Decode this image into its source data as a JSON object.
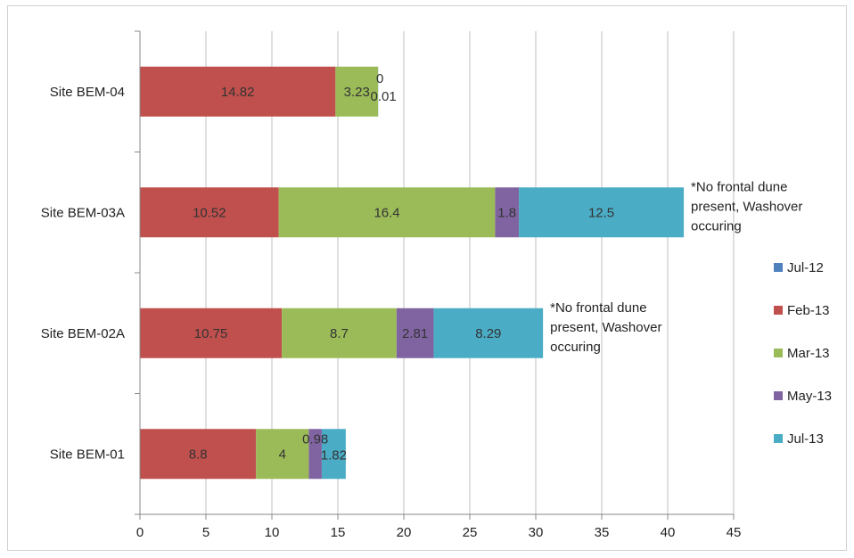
{
  "chart_data": {
    "type": "bar",
    "orientation": "horizontal",
    "stacked": true,
    "categories": [
      "Site BEM-04",
      "Site BEM-03A",
      "Site BEM-02A",
      "Site BEM-01"
    ],
    "series": [
      {
        "name": "Jul-12",
        "color": "#4f81bd",
        "values": [
          0,
          0,
          0,
          0
        ],
        "labels": [
          "",
          "",
          "",
          ""
        ]
      },
      {
        "name": "Feb-13",
        "color": "#c0504d",
        "values": [
          14.82,
          10.52,
          10.75,
          8.8
        ],
        "labels": [
          "14.82",
          "10.52",
          "10.75",
          "8.8"
        ]
      },
      {
        "name": "Mar-13",
        "color": "#9bbb59",
        "values": [
          3.23,
          16.4,
          8.7,
          4
        ],
        "labels": [
          "3.23",
          "16.4",
          "8.7",
          "4"
        ]
      },
      {
        "name": "May-13",
        "color": "#8064a2",
        "values": [
          0,
          1.8,
          2.81,
          0.98
        ],
        "labels": [
          "0",
          "1.8",
          "2.81",
          "0.98"
        ]
      },
      {
        "name": "Jul-13",
        "color": "#4bacc6",
        "values": [
          0.01,
          12.5,
          8.29,
          1.82
        ],
        "labels": [
          "0.01",
          "12.5",
          "8.29",
          "1.82"
        ]
      }
    ],
    "xlim": [
      0,
      45
    ],
    "x_ticks": [
      "0",
      "5",
      "10",
      "15",
      "20",
      "25",
      "30",
      "35",
      "40",
      "45"
    ],
    "grid": "vertical",
    "legend": "right",
    "annotations": [
      {
        "category": "Site BEM-03A",
        "lines": [
          "*No frontal dune",
          "present, Washover",
          "occuring"
        ]
      },
      {
        "category": "Site BEM-02A",
        "lines": [
          "*No frontal dune",
          "present, Washover",
          "occuring"
        ]
      }
    ]
  }
}
